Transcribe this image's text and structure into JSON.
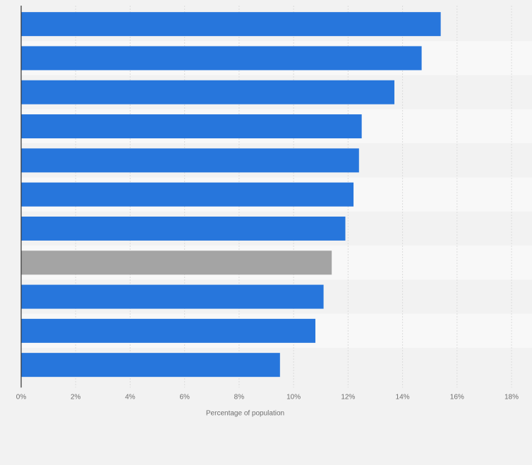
{
  "chart_data": {
    "type": "bar",
    "orientation": "horizontal",
    "title": "",
    "xlabel": "Percentage of population",
    "ylabel": "",
    "xlim": [
      0,
      18
    ],
    "x_ticks": [
      "0%",
      "2%",
      "4%",
      "6%",
      "8%",
      "10%",
      "12%",
      "14%",
      "16%",
      "18%"
    ],
    "tick_values": [
      0,
      2,
      4,
      6,
      8,
      10,
      12,
      14,
      16,
      18
    ],
    "categories": [
      "",
      "",
      "",
      "",
      "",
      "",
      "",
      "",
      "",
      "",
      ""
    ],
    "values": [
      15.4,
      14.7,
      13.7,
      12.5,
      12.4,
      12.2,
      11.9,
      11.4,
      11.1,
      10.8,
      9.5
    ],
    "highlighted_index": 7,
    "grid": true,
    "legend": "none",
    "colors": {
      "bar": "#2776dc",
      "bar_highlight": "#a4a4a4",
      "band_dark": "#f2f2f2",
      "band_light": "#f8f8f8",
      "grid": "#dcdcdc",
      "axis": "#333333",
      "text": "#6e6e6e"
    }
  }
}
